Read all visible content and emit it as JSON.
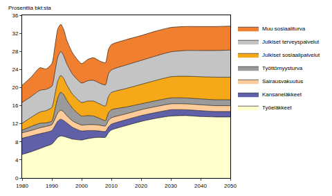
{
  "chart_data": {
    "type": "area",
    "stacked": true,
    "y_label": "Prosenttia bkt:sta",
    "x": [
      1980,
      1983,
      1986,
      1988,
      1990,
      1991,
      1992,
      1993,
      1994,
      1995,
      1997,
      2000,
      2002,
      2004,
      2006,
      2008,
      2009,
      2010,
      2015,
      2020,
      2025,
      2030,
      2035,
      2040,
      2045,
      2050
    ],
    "xlim": [
      1980,
      2050
    ],
    "xticks": [
      1980,
      1990,
      2000,
      2010,
      2020,
      2030,
      2040,
      2050
    ],
    "ylim": [
      0,
      36
    ],
    "yticks": [
      0,
      4,
      8,
      12,
      16,
      20,
      24,
      28,
      32,
      36
    ],
    "grid": false,
    "legend": "right",
    "series": [
      {
        "name": "Työeläkkeet",
        "color": "#ffffcc",
        "values": [
          5.2,
          5.8,
          6.5,
          7.0,
          7.5,
          8.2,
          9.0,
          9.3,
          9.2,
          9.0,
          8.6,
          8.4,
          8.7,
          8.9,
          9.0,
          9.0,
          10.0,
          10.6,
          11.6,
          12.5,
          13.2,
          13.7,
          13.8,
          13.6,
          13.5,
          13.5
        ]
      },
      {
        "name": "Kansaneläkkeet",
        "color": "#6060a8",
        "values": [
          3.6,
          3.5,
          3.3,
          3.1,
          3.0,
          3.3,
          3.6,
          3.7,
          3.5,
          3.2,
          2.6,
          2.0,
          1.8,
          1.6,
          1.4,
          1.3,
          1.3,
          1.3,
          1.3,
          1.3,
          1.3,
          1.4,
          1.3,
          1.3,
          1.2,
          1.2
        ]
      },
      {
        "name": "Sairausvakuutus",
        "color": "#ffcc99",
        "values": [
          1.2,
          1.2,
          1.3,
          1.3,
          1.3,
          1.5,
          1.8,
          2.0,
          1.9,
          1.6,
          1.4,
          1.3,
          1.3,
          1.3,
          1.3,
          1.2,
          1.4,
          1.4,
          1.3,
          1.3,
          1.3,
          1.3,
          1.3,
          1.3,
          1.3,
          1.3
        ]
      },
      {
        "name": "Työttömyysturva",
        "color": "#9a9a9a",
        "values": [
          0.6,
          0.9,
          1.0,
          0.8,
          0.8,
          2.0,
          3.4,
          4.0,
          3.8,
          3.4,
          2.8,
          2.0,
          2.0,
          1.9,
          1.5,
          1.2,
          1.7,
          1.8,
          1.5,
          1.3,
          1.3,
          1.3,
          1.3,
          1.3,
          1.3,
          1.3
        ]
      },
      {
        "name": "Julkiset sosiaalipalvelut",
        "color": "#f5a818",
        "values": [
          1.5,
          2.0,
          2.5,
          2.7,
          3.0,
          3.4,
          3.7,
          3.7,
          3.6,
          3.4,
          3.1,
          3.0,
          3.2,
          3.3,
          3.2,
          3.2,
          3.6,
          3.8,
          4.1,
          4.3,
          4.5,
          4.7,
          4.8,
          4.9,
          5.0,
          5.0
        ]
      },
      {
        "name": "Julkiset terveyspalvelut",
        "color": "#c4c4c4",
        "values": [
          4.6,
          4.6,
          4.8,
          4.7,
          4.7,
          5.0,
          5.3,
          5.3,
          5.0,
          4.7,
          4.4,
          4.3,
          4.5,
          4.6,
          4.6,
          4.7,
          5.0,
          5.0,
          5.2,
          5.3,
          5.4,
          5.5,
          5.7,
          5.8,
          5.9,
          6.0
        ]
      },
      {
        "name": "Muu sosiaaliturva",
        "color": "#f08030",
        "values": [
          3.8,
          4.3,
          5.0,
          4.5,
          5.0,
          5.6,
          6.2,
          6.0,
          5.8,
          5.2,
          4.7,
          4.3,
          4.7,
          5.0,
          4.9,
          4.9,
          5.4,
          5.6,
          5.6,
          5.5,
          5.5,
          5.4,
          5.3,
          5.3,
          5.3,
          5.3
        ]
      }
    ]
  }
}
